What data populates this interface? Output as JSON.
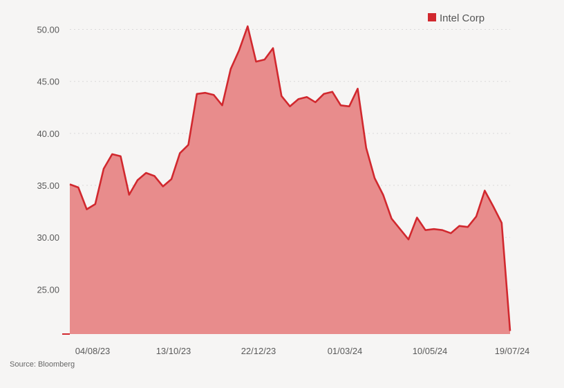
{
  "colors": {
    "background": "#f6f5f4",
    "series_line": "#d1282e",
    "series_fill": "#e88c8c",
    "grid": "#d9d9d9",
    "text": "#5a5a5a"
  },
  "source": "Source: Bloomberg",
  "chart_data": {
    "type": "area",
    "title": "",
    "xlabel": "",
    "ylabel": "",
    "ylim": [
      20.7,
      51.5
    ],
    "grid": "horizontal dotted",
    "legend_position": "top-right",
    "y_ticks": [
      "25.00",
      "30.00",
      "35.00",
      "40.00",
      "45.00",
      "50.00"
    ],
    "x_tick_labels": [
      "04/08/23",
      "13/10/23",
      "22/12/23",
      "01/03/24",
      "10/05/24",
      "19/07/24"
    ],
    "series": [
      {
        "name": "Intel Corp",
        "values": [
          35.1,
          34.8,
          32.7,
          33.2,
          36.6,
          38.0,
          37.8,
          34.1,
          35.5,
          36.2,
          35.9,
          34.9,
          35.6,
          38.1,
          38.9,
          43.8,
          43.9,
          43.7,
          42.7,
          46.2,
          48.0,
          50.3,
          46.9,
          47.1,
          48.2,
          43.6,
          42.6,
          43.3,
          43.5,
          43.0,
          43.8,
          44.0,
          42.7,
          42.6,
          44.3,
          38.6,
          35.7,
          34.1,
          31.8,
          30.8,
          29.8,
          31.9,
          30.7,
          30.8,
          30.7,
          30.4,
          31.1,
          31.0,
          32.0,
          34.5,
          33.0,
          31.4,
          21.0
        ]
      }
    ]
  }
}
